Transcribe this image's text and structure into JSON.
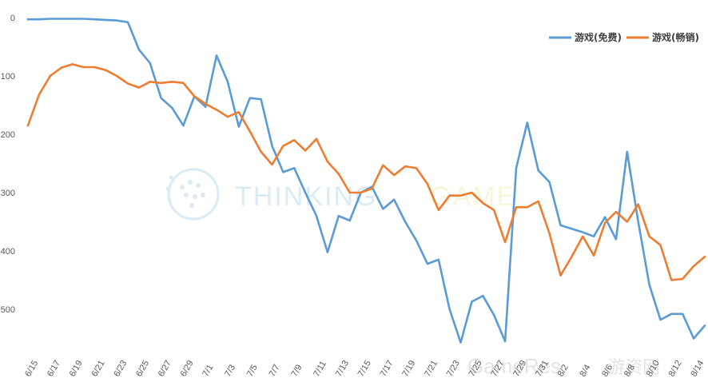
{
  "chart_data": {
    "type": "line",
    "title": "",
    "xlabel": "",
    "ylabel": "",
    "y_inverted": true,
    "ylim": [
      0,
      560
    ],
    "yticks": [
      0,
      100,
      200,
      300,
      400,
      500
    ],
    "x_tick_labels": [
      "6/15",
      "6/17",
      "6/19",
      "6/21",
      "6/23",
      "6/25",
      "6/27",
      "6/29",
      "7/1",
      "7/3",
      "7/5",
      "7/7",
      "7/9",
      "7/11",
      "7/13",
      "7/15",
      "7/17",
      "7/19",
      "7/21",
      "7/23",
      "7/25",
      "7/27",
      "7/29",
      "7/31",
      "8/2",
      "8/4",
      "8/6",
      "8/8",
      "8/10",
      "8/12",
      "8/14"
    ],
    "x": [
      "6/15",
      "6/16",
      "6/17",
      "6/18",
      "6/19",
      "6/20",
      "6/21",
      "6/22",
      "6/23",
      "6/24",
      "6/25",
      "6/26",
      "6/27",
      "6/28",
      "6/29",
      "6/30",
      "7/1",
      "7/2",
      "7/3",
      "7/4",
      "7/5",
      "7/6",
      "7/7",
      "7/8",
      "7/9",
      "7/10",
      "7/11",
      "7/12",
      "7/13",
      "7/14",
      "7/15",
      "7/16",
      "7/17",
      "7/18",
      "7/19",
      "7/20",
      "7/21",
      "7/22",
      "7/23",
      "7/24",
      "7/25",
      "7/26",
      "7/27",
      "7/28",
      "7/29",
      "7/30",
      "7/31",
      "8/1",
      "8/2",
      "8/3",
      "8/4",
      "8/5",
      "8/6",
      "8/7",
      "8/8",
      "8/9",
      "8/10",
      "8/11",
      "8/12",
      "8/13",
      "8/14",
      "8/15"
    ],
    "legend_position": "top-right",
    "grid": false,
    "series": [
      {
        "name": "游戏(免费)",
        "color": "#5B9BD5",
        "values": [
          3,
          3,
          2,
          2,
          2,
          2,
          3,
          4,
          5,
          8,
          55,
          78,
          138,
          155,
          185,
          135,
          153,
          65,
          110,
          187,
          138,
          140,
          220,
          265,
          258,
          300,
          340,
          402,
          340,
          348,
          300,
          290,
          328,
          312,
          350,
          382,
          422,
          415,
          500,
          557,
          487,
          477,
          510,
          555,
          258,
          180,
          262,
          282,
          356,
          362,
          368,
          375,
          342,
          380,
          230,
          350,
          458,
          518,
          508,
          508,
          550,
          528
        ]
      },
      {
        "name": "游戏(畅销)",
        "color": "#ED7D31",
        "values": [
          185,
          132,
          100,
          86,
          80,
          85,
          85,
          90,
          100,
          113,
          120,
          110,
          112,
          110,
          112,
          135,
          148,
          158,
          170,
          162,
          195,
          230,
          252,
          220,
          210,
          228,
          208,
          247,
          268,
          300,
          300,
          293,
          253,
          270,
          255,
          258,
          285,
          330,
          305,
          305,
          300,
          318,
          330,
          385,
          325,
          325,
          315,
          370,
          442,
          410,
          375,
          408,
          352,
          333,
          350,
          320,
          375,
          390,
          450,
          448,
          426,
          410
        ]
      }
    ]
  },
  "watermarks": {
    "thinking": "THINKING",
    "game": "GAME",
    "gameres": "GameRes",
    "gameres_cn": "游资网"
  }
}
